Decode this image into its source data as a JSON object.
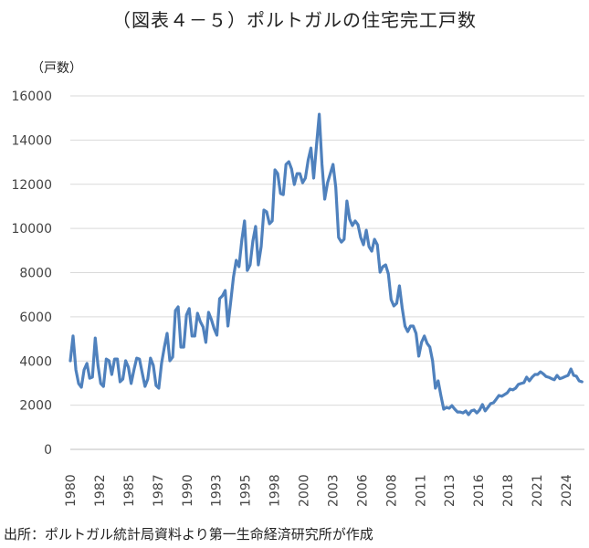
{
  "chart_data": {
    "type": "line",
    "title": "（図表４－５）ポルトガルの住宅完工戸数",
    "ylabel": "（戸数）",
    "xlabel": "",
    "source": "出所：ポルトガル統計局資料より第一生命経済研究所が作成",
    "ylim": [
      0,
      16000
    ],
    "yticks": [
      0,
      2000,
      4000,
      6000,
      8000,
      10000,
      12000,
      14000,
      16000
    ],
    "xticks": [
      "1980",
      "1982",
      "1985",
      "1987",
      "1990",
      "1993",
      "1995",
      "1998",
      "2000",
      "2003",
      "2006",
      "2008",
      "2011",
      "2013",
      "2016",
      "2018",
      "2021",
      "2024"
    ],
    "x_start": 1980,
    "x_end": 2025.4,
    "grid": true,
    "legend": "none",
    "series": [
      {
        "name": "住宅完工戸数",
        "color": "#4f81bd",
        "values": [
          4010,
          5130,
          3600,
          2980,
          2810,
          3600,
          3890,
          3220,
          3270,
          5040,
          3800,
          2980,
          2850,
          4090,
          4010,
          3390,
          4090,
          4090,
          3060,
          3180,
          4010,
          3720,
          2980,
          3600,
          4130,
          4090,
          3470,
          2850,
          3180,
          4130,
          3800,
          2890,
          2770,
          3890,
          4630,
          5250,
          4010,
          4180,
          6280,
          6450,
          4630,
          4630,
          6080,
          6370,
          5130,
          5130,
          6160,
          5790,
          5540,
          4840,
          6200,
          5870,
          5460,
          5170,
          6820,
          6950,
          7190,
          5580,
          6700,
          7810,
          8560,
          8270,
          9470,
          10340,
          8100,
          8350,
          9430,
          10090,
          8350,
          9180,
          10830,
          10750,
          10210,
          10340,
          12650,
          12480,
          11580,
          11530,
          12900,
          13020,
          12690,
          11990,
          12480,
          12480,
          12070,
          12280,
          13100,
          13640,
          12280,
          13720,
          15170,
          12900,
          11330,
          12070,
          12480,
          12900,
          11860,
          9590,
          9380,
          9510,
          11240,
          10420,
          10130,
          10340,
          10170,
          9590,
          9260,
          9920,
          9180,
          8970,
          9510,
          9260,
          8020,
          8270,
          8350,
          7940,
          6780,
          6490,
          6610,
          7400,
          6410,
          5580,
          5330,
          5580,
          5580,
          5250,
          4220,
          4840,
          5130,
          4800,
          4630,
          4010,
          2770,
          3100,
          2440,
          1820,
          1900,
          1860,
          1980,
          1820,
          1690,
          1690,
          1650,
          1740,
          1570,
          1740,
          1780,
          1650,
          1780,
          2030,
          1740,
          1900,
          2070,
          2110,
          2270,
          2440,
          2400,
          2480,
          2560,
          2730,
          2690,
          2770,
          2940,
          2980,
          3020,
          3270,
          3100,
          3270,
          3390,
          3390,
          3510,
          3420,
          3300,
          3260,
          3200,
          3150,
          3350,
          3200,
          3240,
          3300,
          3350,
          3640,
          3350,
          3310,
          3100,
          3060
        ]
      }
    ]
  }
}
